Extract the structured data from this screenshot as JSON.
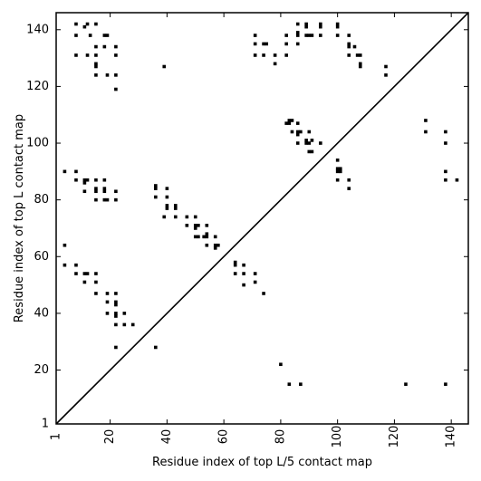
{
  "chart_data": {
    "type": "scatter",
    "title": "",
    "xlabel": "Residue index of top L/5 contact map",
    "ylabel": "Residue index of top L contact map",
    "xlim": [
      1,
      146
    ],
    "ylim": [
      1,
      146
    ],
    "x_ticks": [
      1,
      20,
      40,
      60,
      80,
      100,
      120,
      140
    ],
    "y_ticks": [
      1,
      20,
      40,
      60,
      80,
      100,
      120,
      140
    ],
    "x_tick_rotation": -90,
    "grid": false,
    "legend": "none",
    "marker_color": "#000000",
    "marker_shape": "square",
    "diagonal_line": {
      "from": [
        1,
        1
      ],
      "to": [
        146,
        146
      ]
    },
    "series": [
      {
        "points": [
          [
            8,
            142
          ],
          [
            11,
            141
          ],
          [
            12,
            142
          ],
          [
            15,
            142
          ],
          [
            8,
            138
          ],
          [
            13,
            138
          ],
          [
            18,
            138
          ],
          [
            19,
            138
          ],
          [
            8,
            131
          ],
          [
            12,
            131
          ],
          [
            15,
            131
          ],
          [
            22,
            131
          ],
          [
            15,
            134
          ],
          [
            18,
            134
          ],
          [
            22,
            134
          ],
          [
            15,
            128
          ],
          [
            15,
            127
          ],
          [
            15,
            124
          ],
          [
            19,
            124
          ],
          [
            22,
            124
          ],
          [
            22,
            119
          ],
          [
            39,
            127
          ],
          [
            71,
            138
          ],
          [
            71,
            135
          ],
          [
            74,
            135
          ],
          [
            75,
            135
          ],
          [
            71,
            131
          ],
          [
            74,
            131
          ],
          [
            78,
            131
          ],
          [
            78,
            128
          ],
          [
            82,
            138
          ],
          [
            82,
            135
          ],
          [
            82,
            131
          ],
          [
            86,
            142
          ],
          [
            86,
            139
          ],
          [
            86,
            138
          ],
          [
            86,
            135
          ],
          [
            89,
            142
          ],
          [
            89,
            141
          ],
          [
            89,
            138
          ],
          [
            90,
            138
          ],
          [
            91,
            138
          ],
          [
            94,
            142
          ],
          [
            94,
            141
          ],
          [
            94,
            138
          ],
          [
            100,
            142
          ],
          [
            100,
            141
          ],
          [
            100,
            138
          ],
          [
            104,
            138
          ],
          [
            104,
            135
          ],
          [
            104,
            134
          ],
          [
            104,
            131
          ],
          [
            106,
            134
          ],
          [
            107,
            131
          ],
          [
            108,
            131
          ],
          [
            108,
            128
          ],
          [
            108,
            127
          ],
          [
            117,
            127
          ],
          [
            117,
            124
          ],
          [
            83,
            108
          ],
          [
            83,
            107
          ],
          [
            84,
            108
          ],
          [
            82,
            107
          ],
          [
            86,
            107
          ],
          [
            86,
            104
          ],
          [
            87,
            104
          ],
          [
            84,
            104
          ],
          [
            86,
            103
          ],
          [
            86,
            100
          ],
          [
            90,
            104
          ],
          [
            89,
            101
          ],
          [
            89,
            100
          ],
          [
            90,
            100
          ],
          [
            91,
            101
          ],
          [
            90,
            97
          ],
          [
            91,
            97
          ],
          [
            94,
            100
          ],
          [
            100,
            94
          ],
          [
            100,
            91
          ],
          [
            100,
            90
          ],
          [
            101,
            91
          ],
          [
            101,
            90
          ],
          [
            100,
            87
          ],
          [
            104,
            87
          ],
          [
            104,
            84
          ],
          [
            131,
            108
          ],
          [
            131,
            104
          ],
          [
            138,
            104
          ],
          [
            138,
            100
          ],
          [
            138,
            90
          ],
          [
            138,
            87
          ],
          [
            142,
            87
          ],
          [
            4,
            90
          ],
          [
            8,
            90
          ],
          [
            8,
            87
          ],
          [
            11,
            87
          ],
          [
            12,
            87
          ],
          [
            11,
            86
          ],
          [
            11,
            83
          ],
          [
            15,
            87
          ],
          [
            15,
            84
          ],
          [
            15,
            83
          ],
          [
            18,
            87
          ],
          [
            18,
            84
          ],
          [
            18,
            83
          ],
          [
            15,
            80
          ],
          [
            18,
            80
          ],
          [
            19,
            80
          ],
          [
            22,
            83
          ],
          [
            22,
            80
          ],
          [
            36,
            85
          ],
          [
            36,
            84
          ],
          [
            36,
            81
          ],
          [
            40,
            84
          ],
          [
            40,
            81
          ],
          [
            40,
            78
          ],
          [
            40,
            77
          ],
          [
            43,
            78
          ],
          [
            43,
            77
          ],
          [
            39,
            74
          ],
          [
            43,
            74
          ],
          [
            47,
            74
          ],
          [
            50,
            74
          ],
          [
            47,
            71
          ],
          [
            50,
            71
          ],
          [
            51,
            71
          ],
          [
            50,
            70
          ],
          [
            54,
            71
          ],
          [
            50,
            67
          ],
          [
            51,
            67
          ],
          [
            53,
            67
          ],
          [
            54,
            68
          ],
          [
            54,
            67
          ],
          [
            57,
            67
          ],
          [
            54,
            64
          ],
          [
            57,
            64
          ],
          [
            57,
            63
          ],
          [
            58,
            64
          ],
          [
            4,
            64
          ],
          [
            4,
            57
          ],
          [
            8,
            57
          ],
          [
            8,
            54
          ],
          [
            11,
            54
          ],
          [
            12,
            54
          ],
          [
            15,
            54
          ],
          [
            11,
            51
          ],
          [
            15,
            51
          ],
          [
            15,
            47
          ],
          [
            19,
            47
          ],
          [
            22,
            47
          ],
          [
            19,
            44
          ],
          [
            22,
            44
          ],
          [
            22,
            43
          ],
          [
            19,
            40
          ],
          [
            22,
            40
          ],
          [
            22,
            39
          ],
          [
            25,
            40
          ],
          [
            22,
            36
          ],
          [
            25,
            36
          ],
          [
            28,
            36
          ],
          [
            22,
            28
          ],
          [
            36,
            28
          ],
          [
            64,
            58
          ],
          [
            64,
            57
          ],
          [
            67,
            57
          ],
          [
            64,
            54
          ],
          [
            67,
            54
          ],
          [
            71,
            54
          ],
          [
            71,
            51
          ],
          [
            67,
            50
          ],
          [
            74,
            47
          ],
          [
            80,
            22
          ],
          [
            83,
            15
          ],
          [
            87,
            15
          ],
          [
            124,
            15
          ],
          [
            138,
            15
          ]
        ]
      }
    ]
  }
}
